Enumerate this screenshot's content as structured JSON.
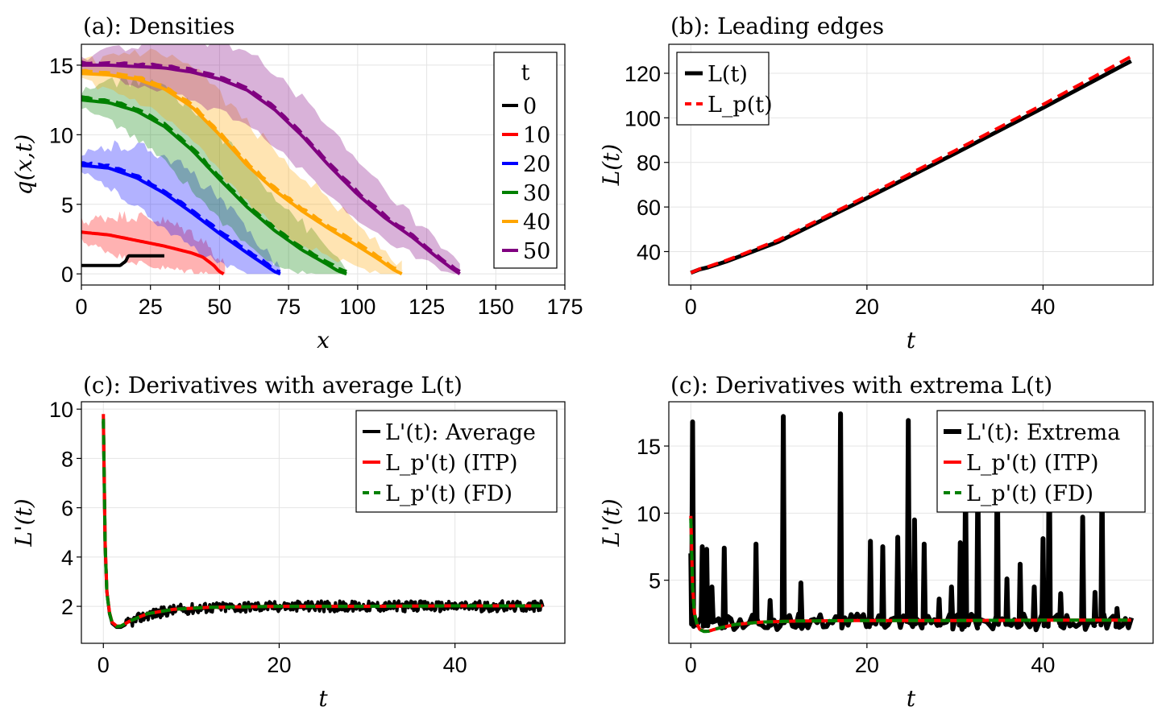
{
  "colors": {
    "black": "#000000",
    "red": "#ff0000",
    "blue": "#0000ff",
    "green": "#008000",
    "orange": "#ffa500",
    "purple": "#800080"
  },
  "chart_data": [
    {
      "id": "a",
      "type": "line",
      "title": "(a): Densities",
      "xlabel": "x",
      "ylabel": "q(x,t)",
      "xlim": [
        0,
        175
      ],
      "ylim": [
        -0.8,
        16.5
      ],
      "xticks": [
        0,
        25,
        50,
        75,
        100,
        125,
        150,
        175
      ],
      "yticks": [
        0,
        5,
        10,
        15
      ],
      "grid": true,
      "legend": {
        "title": "t",
        "placement": "top-right"
      },
      "series": [
        {
          "name": "0",
          "color": "black",
          "dashed_overlay": false,
          "band": false,
          "x": [
            0,
            14,
            16,
            17,
            30
          ],
          "y": [
            0.6,
            0.6,
            0.9,
            1.3,
            1.3
          ]
        },
        {
          "name": "10",
          "color": "red",
          "dashed_overlay": false,
          "band": true,
          "band_width": [
            0.7,
            1.8
          ],
          "band_end": 52,
          "x": [
            0,
            10,
            20,
            30,
            40,
            44,
            48,
            50,
            51.5
          ],
          "y": [
            3.0,
            2.8,
            2.4,
            2.0,
            1.5,
            1.2,
            0.6,
            0.15,
            0
          ]
        },
        {
          "name": "20",
          "color": "blue",
          "dashed_overlay": true,
          "band": true,
          "band_width": [
            0.6,
            2.8
          ],
          "band_end": 72,
          "x": [
            0,
            10,
            20,
            30,
            40,
            50,
            60,
            66,
            70,
            72
          ],
          "y": [
            7.8,
            7.6,
            6.9,
            5.8,
            4.4,
            2.9,
            1.5,
            0.7,
            0.15,
            0
          ]
        },
        {
          "name": "30",
          "color": "green",
          "dashed_overlay": true,
          "band": true,
          "band_width": [
            0.6,
            3.2
          ],
          "band_end": 96,
          "x": [
            0,
            10,
            20,
            30,
            40,
            50,
            60,
            70,
            80,
            88,
            93,
            96
          ],
          "y": [
            12.5,
            12.3,
            11.7,
            10.6,
            8.9,
            6.8,
            4.8,
            3.1,
            1.7,
            0.8,
            0.2,
            0
          ]
        },
        {
          "name": "40",
          "color": "orange",
          "dashed_overlay": true,
          "band": true,
          "band_width": [
            0.6,
            3.0
          ],
          "band_end": 116,
          "x": [
            0,
            10,
            20,
            30,
            40,
            50,
            60,
            70,
            80,
            90,
            100,
            108,
            113,
            116
          ],
          "y": [
            14.4,
            14.3,
            14.0,
            13.3,
            12.0,
            10.0,
            7.8,
            6.0,
            4.5,
            3.2,
            2.0,
            1.0,
            0.3,
            0
          ]
        },
        {
          "name": "50",
          "color": "purple",
          "dashed_overlay": true,
          "band": true,
          "band_width": [
            0.5,
            2.8
          ],
          "band_end": 137,
          "x": [
            0,
            10,
            20,
            30,
            40,
            50,
            60,
            70,
            80,
            90,
            100,
            110,
            120,
            128,
            134,
            137
          ],
          "y": [
            15.0,
            15.0,
            14.9,
            14.8,
            14.5,
            14.0,
            13.2,
            11.8,
            9.9,
            7.7,
            5.7,
            4.0,
            2.6,
            1.3,
            0.4,
            0
          ]
        }
      ]
    },
    {
      "id": "b",
      "type": "line",
      "title": "(b): Leading edges",
      "xlabel": "t",
      "ylabel": "L(t)",
      "xlim": [
        -2.5,
        52.5
      ],
      "ylim": [
        25,
        133
      ],
      "xticks": [
        0,
        20,
        40
      ],
      "yticks": [
        40,
        60,
        80,
        100,
        120
      ],
      "grid": true,
      "legend": {
        "placement": "top-left",
        "entries": [
          "L(t)",
          "L_p(t)"
        ]
      },
      "series": [
        {
          "name": "L(t)",
          "color": "black",
          "style": "solid",
          "width": 5,
          "x": [
            0,
            1,
            2,
            4,
            6,
            10,
            20,
            30,
            40,
            50
          ],
          "y": [
            30.5,
            32,
            33,
            35.5,
            38.5,
            44.5,
            64,
            84,
            104.5,
            125.5
          ]
        },
        {
          "name": "L_p(t)",
          "color": "red",
          "style": "dashed",
          "width": 4,
          "x": [
            0,
            1,
            2,
            4,
            6,
            10,
            20,
            30,
            40,
            50
          ],
          "y": [
            30.5,
            32.2,
            33.3,
            36,
            39,
            45.3,
            65,
            85.3,
            106,
            127.5
          ]
        }
      ]
    },
    {
      "id": "c1",
      "type": "line",
      "title": "(c):  Derivatives with average L(t)",
      "xlabel": "t",
      "ylabel": "L'(t)",
      "xlim": [
        -2.5,
        52.5
      ],
      "ylim": [
        0.5,
        10.3
      ],
      "xticks": [
        0,
        20,
        40
      ],
      "yticks": [
        2,
        4,
        6,
        8,
        10
      ],
      "grid": true,
      "legend": {
        "placement": "top-right",
        "entries": [
          "L'(t): Average",
          "L_p'(t) (ITP)",
          "L_p'(t) (FD)"
        ]
      },
      "series": [
        {
          "name": "L'(t): Average",
          "color": "black",
          "style": "solid",
          "width": 4,
          "noise": 0.22,
          "x": [
            0,
            0.1,
            0.2,
            0.4,
            0.7,
            1,
            1.5,
            2,
            3,
            5,
            8,
            12,
            20,
            30,
            40,
            50
          ],
          "y": [
            9.5,
            7.0,
            4.5,
            2.6,
            1.7,
            1.3,
            1.15,
            1.15,
            1.35,
            1.65,
            1.85,
            1.95,
            2.0,
            2.0,
            2.0,
            2.0
          ]
        },
        {
          "name": "L_p'(t) (ITP)",
          "color": "red",
          "style": "solid",
          "width": 4,
          "x": [
            0,
            0.1,
            0.2,
            0.4,
            0.7,
            1,
            1.5,
            2,
            3,
            5,
            8,
            12,
            20,
            30,
            40,
            50
          ],
          "y": [
            9.8,
            7.2,
            4.6,
            2.6,
            1.75,
            1.35,
            1.2,
            1.2,
            1.4,
            1.7,
            1.88,
            1.96,
            2.0,
            2.0,
            2.02,
            2.02
          ]
        },
        {
          "name": "L_p'(t) (FD)",
          "color": "green",
          "style": "dashed",
          "width": 4,
          "x": [
            0,
            0.1,
            0.2,
            0.4,
            0.7,
            1,
            1.5,
            2,
            3,
            5,
            8,
            12,
            20,
            30,
            40,
            50
          ],
          "y": [
            9.6,
            7.1,
            4.5,
            2.55,
            1.72,
            1.33,
            1.18,
            1.2,
            1.4,
            1.7,
            1.88,
            1.96,
            2.0,
            2.0,
            2.02,
            2.02
          ]
        }
      ]
    },
    {
      "id": "c2",
      "type": "line",
      "title": "(c):  Derivatives with extrema L(t)",
      "xlabel": "t",
      "ylabel": "L'(t)",
      "xlim": [
        -2.5,
        52.5
      ],
      "ylim": [
        0.3,
        18.3
      ],
      "xticks": [
        0,
        20,
        40
      ],
      "yticks": [
        5,
        10,
        15
      ],
      "grid": true,
      "legend": {
        "placement": "top-right",
        "entries": [
          "L'(t): Extrema",
          "L_p'(t) (ITP)",
          "L_p'(t) (FD)"
        ]
      },
      "spikes": [
        [
          0.2,
          16.8
        ],
        [
          1.3,
          7.5
        ],
        [
          1.8,
          7.3
        ],
        [
          2.4,
          4.5
        ],
        [
          3.8,
          7.4
        ],
        [
          7.4,
          7.7
        ],
        [
          9.0,
          3.5
        ],
        [
          10.5,
          17.2
        ],
        [
          12.5,
          4.8
        ],
        [
          17.0,
          17.4
        ],
        [
          20.4,
          7.9
        ],
        [
          21.8,
          7.5
        ],
        [
          23.5,
          8.2
        ],
        [
          24.7,
          16.9
        ],
        [
          25.4,
          9.5
        ],
        [
          26.5,
          7.7
        ],
        [
          28.2,
          3.6
        ],
        [
          29.6,
          4.5
        ],
        [
          30.6,
          7.8
        ],
        [
          31.2,
          12.6
        ],
        [
          32.6,
          13.0
        ],
        [
          34.8,
          15.7
        ],
        [
          35.9,
          5.1
        ],
        [
          37.4,
          6.2
        ],
        [
          39.0,
          4.5
        ],
        [
          40.0,
          8.1
        ],
        [
          40.7,
          16.1
        ],
        [
          42.0,
          4.0
        ],
        [
          44.5,
          9.7
        ],
        [
          45.9,
          4.1
        ],
        [
          46.7,
          12.8
        ],
        [
          48.4,
          2.9
        ]
      ],
      "baseline": 1.9,
      "series": [
        {
          "name": "L'(t): Extrema",
          "color": "black",
          "style": "solid",
          "width": 6
        },
        {
          "name": "L_p'(t) (ITP)",
          "color": "red",
          "style": "solid",
          "width": 4,
          "x": [
            0,
            0.1,
            0.2,
            0.4,
            0.7,
            1,
            1.5,
            2,
            3,
            5,
            8,
            12,
            20,
            30,
            40,
            50
          ],
          "y": [
            9.8,
            7.2,
            4.6,
            2.6,
            1.75,
            1.35,
            1.2,
            1.2,
            1.4,
            1.7,
            1.88,
            1.96,
            2.0,
            2.0,
            2.02,
            2.02
          ]
        },
        {
          "name": "L_p'(t) (FD)",
          "color": "green",
          "style": "dashed",
          "width": 4,
          "x": [
            0,
            0.1,
            0.2,
            0.4,
            0.7,
            1,
            1.5,
            2,
            3,
            5,
            8,
            12,
            20,
            30,
            40,
            50
          ],
          "y": [
            9.6,
            7.1,
            4.5,
            2.55,
            1.72,
            1.33,
            1.18,
            1.2,
            1.4,
            1.7,
            1.88,
            1.96,
            2.0,
            2.0,
            2.02,
            2.02
          ]
        }
      ]
    }
  ]
}
